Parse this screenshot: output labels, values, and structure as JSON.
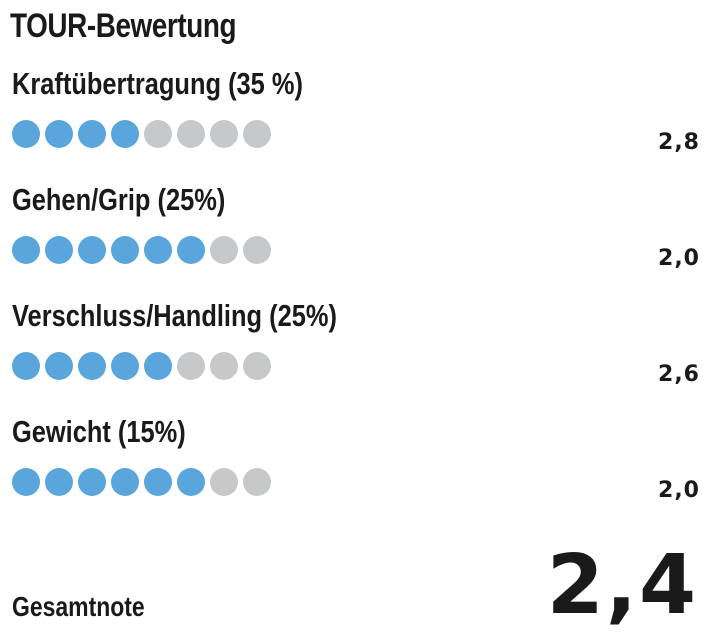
{
  "title": "TOUR-Bewertung",
  "criteria": [
    {
      "label": "Kraftübertragung (35 %)",
      "filled": 4,
      "total": 8,
      "score": "2,8"
    },
    {
      "label": "Gehen/Grip (25%)",
      "filled": 6,
      "total": 8,
      "score": "2,0"
    },
    {
      "label": "Verschluss/Handling (25%)",
      "filled": 5,
      "total": 8,
      "score": "2,6"
    },
    {
      "label": "Gewicht (15%)",
      "filled": 6,
      "total": 8,
      "score": "2,0"
    }
  ],
  "total": {
    "label": "Gesamtnote",
    "value": "2,4"
  },
  "colors": {
    "filled_dot": "#5aa6dc",
    "empty_dot": "#c7c8ca",
    "text": "#1a1a1a"
  }
}
